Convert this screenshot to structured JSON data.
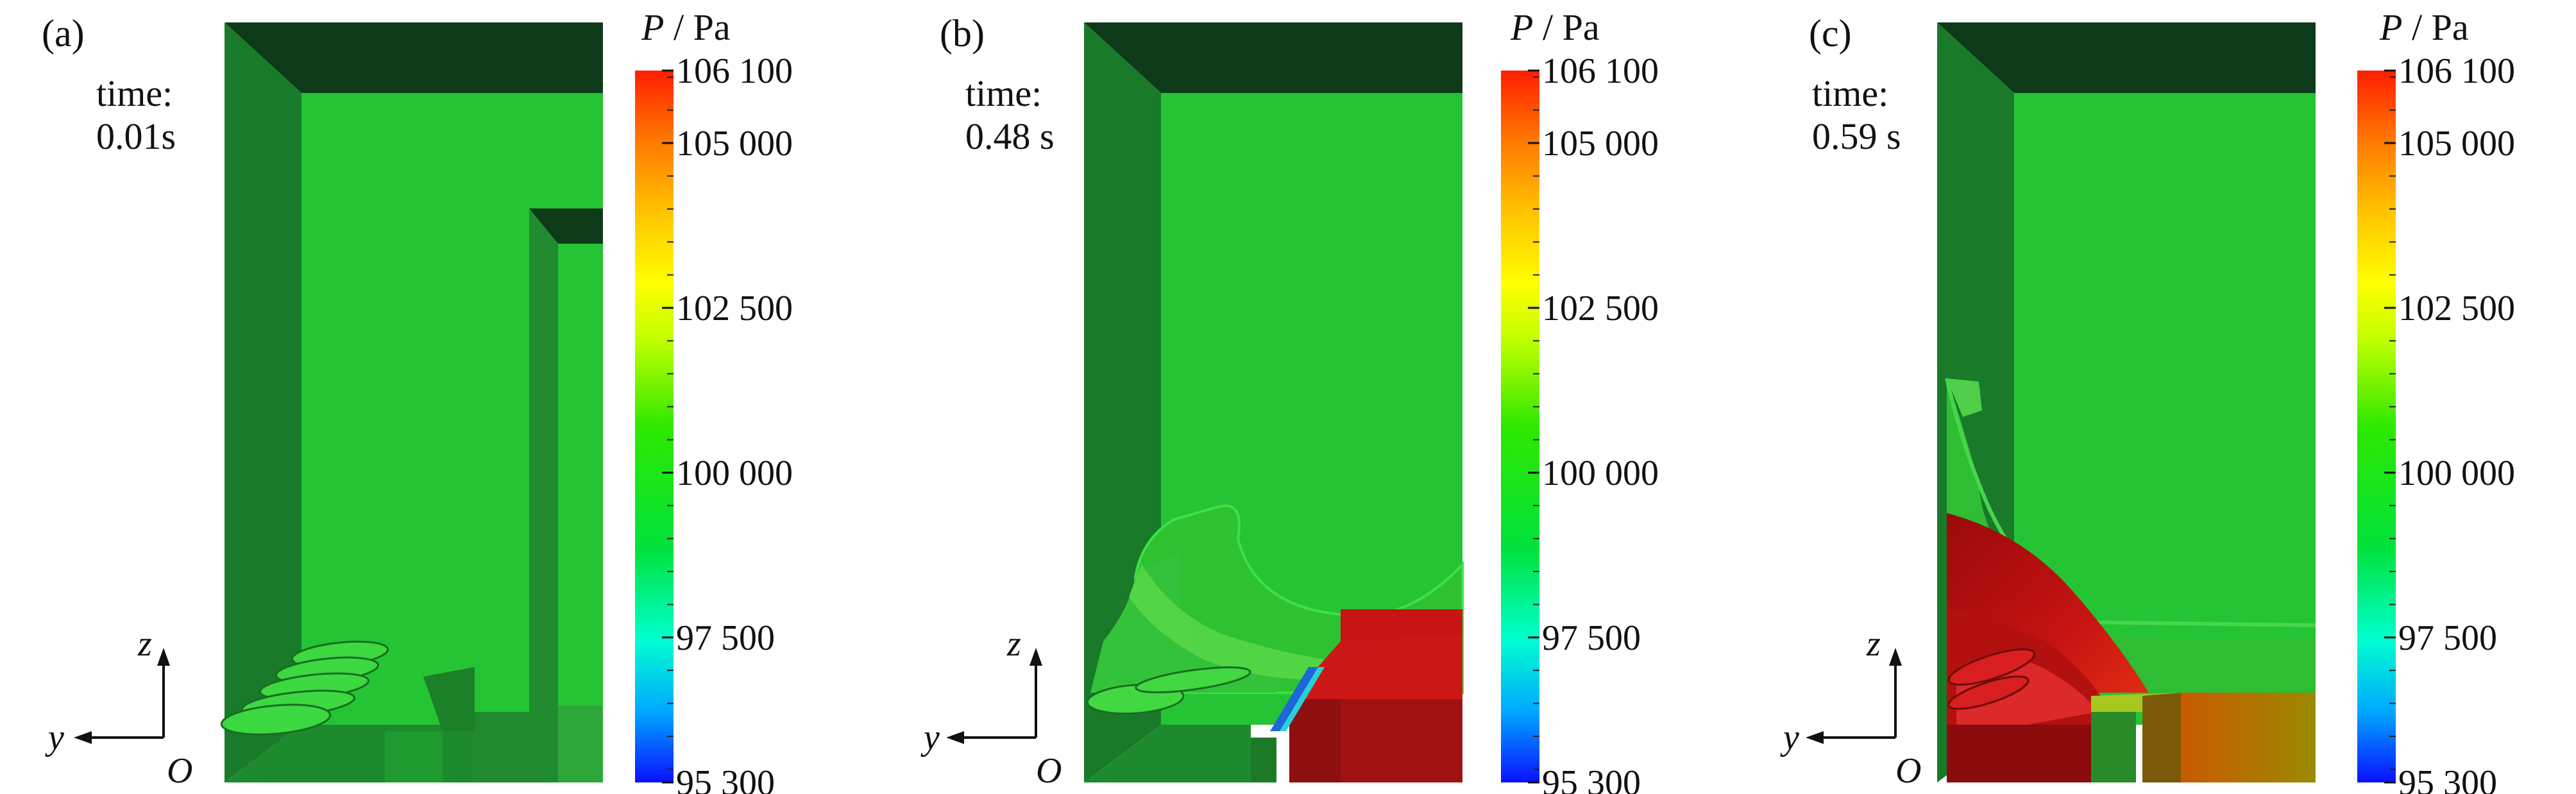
{
  "panels": [
    {
      "id": "a",
      "label": "(a)",
      "time_title": "time:",
      "time_value": "0.01s"
    },
    {
      "id": "b",
      "label": "(b)",
      "time_title": "time:",
      "time_value": "0.48 s"
    },
    {
      "id": "c",
      "label": "(c)",
      "time_title": "time:",
      "time_value": "0.59 s"
    }
  ],
  "colorbar": {
    "var": "P",
    "sep": " / ",
    "unit": "Pa",
    "min": 95300,
    "max": 106100,
    "ticks": [
      {
        "value": 106100,
        "label": "106 100"
      },
      {
        "value": 105000,
        "label": "105 000"
      },
      {
        "value": 102500,
        "label": "102 500"
      },
      {
        "value": 100000,
        "label": "100 000"
      },
      {
        "value": 97500,
        "label": "97 500"
      },
      {
        "value": 95300,
        "label": "95 300"
      }
    ],
    "colors": [
      "#0b10ff",
      "#00a8ff",
      "#00ffd0",
      "#00e23a",
      "#33ee00",
      "#bfff00",
      "#ffff00",
      "#ffc400",
      "#ff7a00",
      "#ff1e00"
    ]
  },
  "axes": {
    "z": "z",
    "y": "y",
    "origin": "O"
  }
}
